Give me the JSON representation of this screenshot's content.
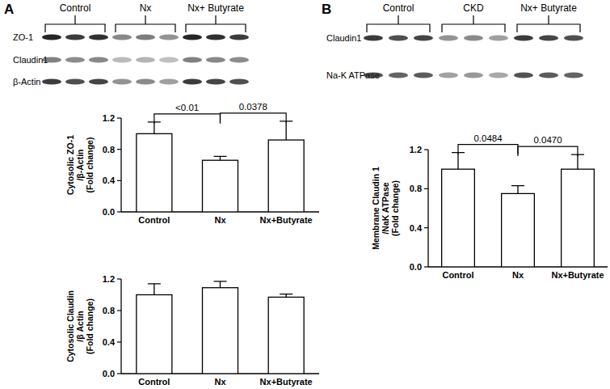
{
  "panels": [
    {
      "label": "A",
      "blot": {
        "groups": [
          "Control",
          "Nx",
          "Nx+ Butyrate"
        ],
        "bands": [
          "ZO-1",
          "Claudin1",
          "β-Actin"
        ]
      }
    },
    {
      "label": "B",
      "blot": {
        "groups": [
          "Control",
          "CKD",
          "Nx+ Butyrate"
        ],
        "bands": [
          "Claudin1",
          "Na-K ATPase"
        ]
      }
    }
  ],
  "chart_data": [
    {
      "type": "bar",
      "y_label": "Cytosolic ZO-1\n/β-Actin\n(Fold change)",
      "categories": [
        "Control",
        "Nx",
        "Nx+Butyrate"
      ],
      "values": [
        1.0,
        0.66,
        0.92
      ],
      "errors": [
        0.15,
        0.05,
        0.24
      ],
      "color": "#ffffff",
      "ylim": [
        0,
        1.2
      ],
      "yticks": [
        {
          "value": 0,
          "label": "0.0"
        },
        0.4,
        0.8,
        1.2
      ],
      "annotations": [
        {
          "from": 0,
          "to": 1,
          "text": "<0.01"
        },
        {
          "from": 1,
          "to": 2,
          "text": "0.0378"
        }
      ]
    },
    {
      "type": "bar",
      "y_label": "Cytosolic Claudin\n/β Actin\n(Fold change)",
      "categories": [
        "Control",
        "Nx",
        "Nx+Butyrate"
      ],
      "values": [
        1.0,
        1.09,
        0.97
      ],
      "errors": [
        0.14,
        0.08,
        0.04
      ],
      "color": "#ffffff",
      "ylim": [
        0,
        1.2
      ],
      "yticks": [
        {
          "value": 0,
          "label": "0.0"
        },
        0.4,
        0.8,
        1.2
      ]
    },
    {
      "type": "bar",
      "y_label": "Membrane Claudin 1\n/NaK ATPase\n(Fold change)",
      "categories": [
        "Control",
        "Nx",
        "Nx+Butyrate"
      ],
      "values": [
        1.0,
        0.75,
        1.0
      ],
      "errors": [
        0.17,
        0.08,
        0.15
      ],
      "color": "#ffffff",
      "ylim": [
        0,
        1.2
      ],
      "yticks": [
        {
          "value": 0,
          "label": "0.0"
        },
        0.4,
        0.8,
        1.2
      ],
      "annotations": [
        {
          "from": 0,
          "to": 1,
          "text": "0.0484"
        },
        {
          "from": 1,
          "to": 2,
          "text": "0.0470"
        }
      ]
    }
  ]
}
